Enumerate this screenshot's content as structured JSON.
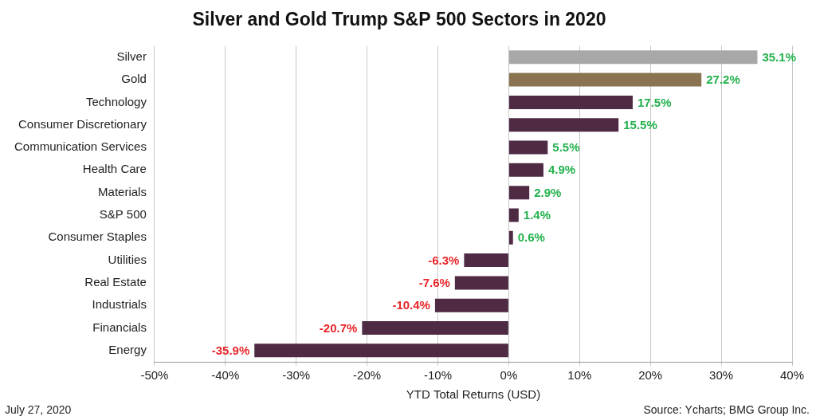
{
  "chart_data": {
    "type": "bar",
    "title": "Silver and Gold Trump S&P 500 Sectors in 2020",
    "orientation": "horizontal",
    "categories": [
      "Silver",
      "Gold",
      "Technology",
      "Consumer Discretionary",
      "Communication Services",
      "Health Care",
      "Materials",
      "S&P 500",
      "Consumer Staples",
      "Utilities",
      "Real Estate",
      "Industrials",
      "Financials",
      "Energy"
    ],
    "values": [
      35.1,
      27.2,
      17.5,
      15.5,
      5.5,
      4.9,
      2.9,
      1.4,
      0.6,
      -6.3,
      -7.6,
      -10.4,
      -20.7,
      -35.9
    ],
    "value_labels": [
      "35.1%",
      "27.2%",
      "17.5%",
      "15.5%",
      "5.5%",
      "4.9%",
      "2.9%",
      "1.4%",
      "0.6%",
      "-6.3%",
      "-7.6%",
      "-10.4%",
      "-20.7%",
      "-35.9%"
    ],
    "colors": [
      "#a8a8a8",
      "#8a7350",
      "#4e2a43",
      "#4e2a43",
      "#4e2a43",
      "#4e2a43",
      "#4e2a43",
      "#4e2a43",
      "#4e2a43",
      "#4e2a43",
      "#4e2a43",
      "#4e2a43",
      "#4e2a43",
      "#4e2a43"
    ],
    "xlabel": "YTD Total Returns (USD)",
    "xlim": [
      -50,
      40
    ],
    "xticks": [
      {
        "value": -50,
        "label": "-50%"
      },
      {
        "value": -40,
        "label": "-40%"
      },
      {
        "value": -30,
        "label": "-30%"
      },
      {
        "value": -20,
        "label": "-20%"
      },
      {
        "value": -10,
        "label": "-10%"
      },
      {
        "value": 0,
        "label": "0%"
      },
      {
        "value": 10,
        "label": "10%"
      },
      {
        "value": 20,
        "label": "20%"
      },
      {
        "value": 30,
        "label": "30%"
      },
      {
        "value": 40,
        "label": "40%"
      }
    ],
    "grid": true,
    "data_labels": true,
    "annotations": [
      "July 27, 2020",
      "Source: Ycharts; BMG Group Inc."
    ]
  }
}
